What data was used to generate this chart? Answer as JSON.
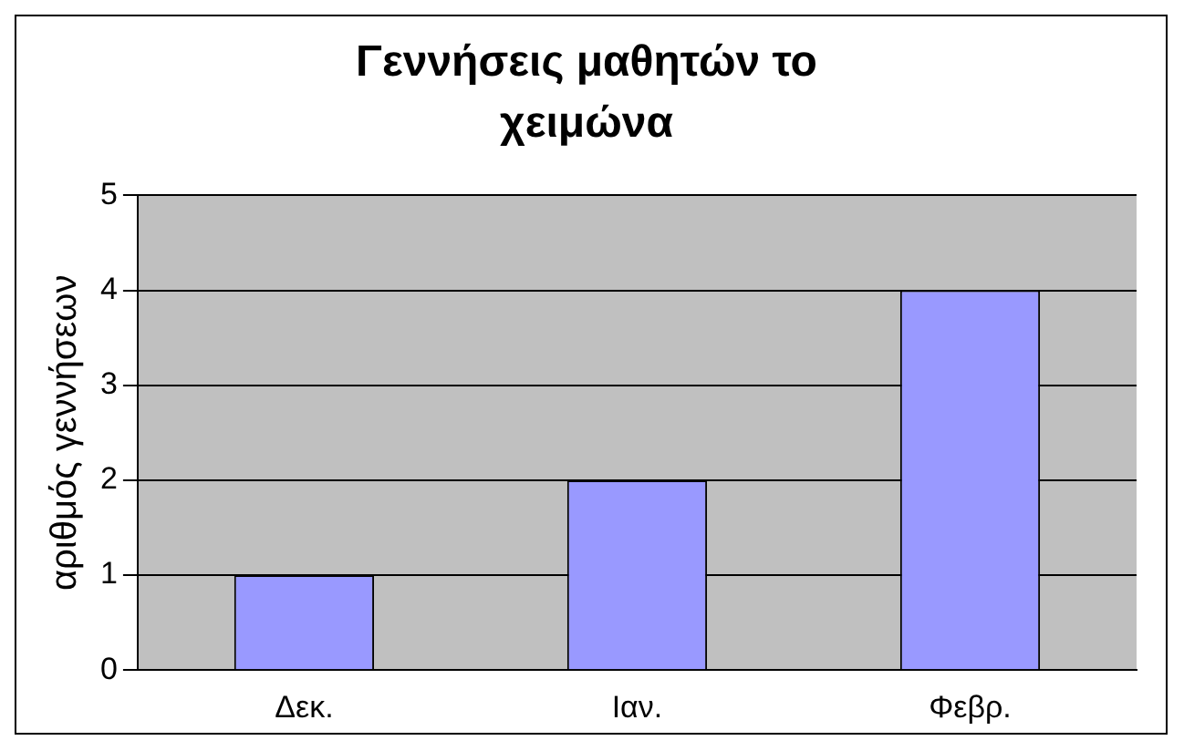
{
  "chart_data": {
    "type": "bar",
    "title": "Γεννήσεις μαθητών το χειμώνα",
    "ylabel": "αριθμός γεννήσεων",
    "categories": [
      "Δεκ.",
      "Ιαν.",
      "Φεβρ."
    ],
    "values": [
      1,
      2,
      4
    ],
    "color": "#9999ff",
    "ylim": [
      0,
      5
    ],
    "yticks": [
      0,
      1,
      2,
      3,
      4,
      5
    ],
    "grid": "y",
    "legend": false
  }
}
